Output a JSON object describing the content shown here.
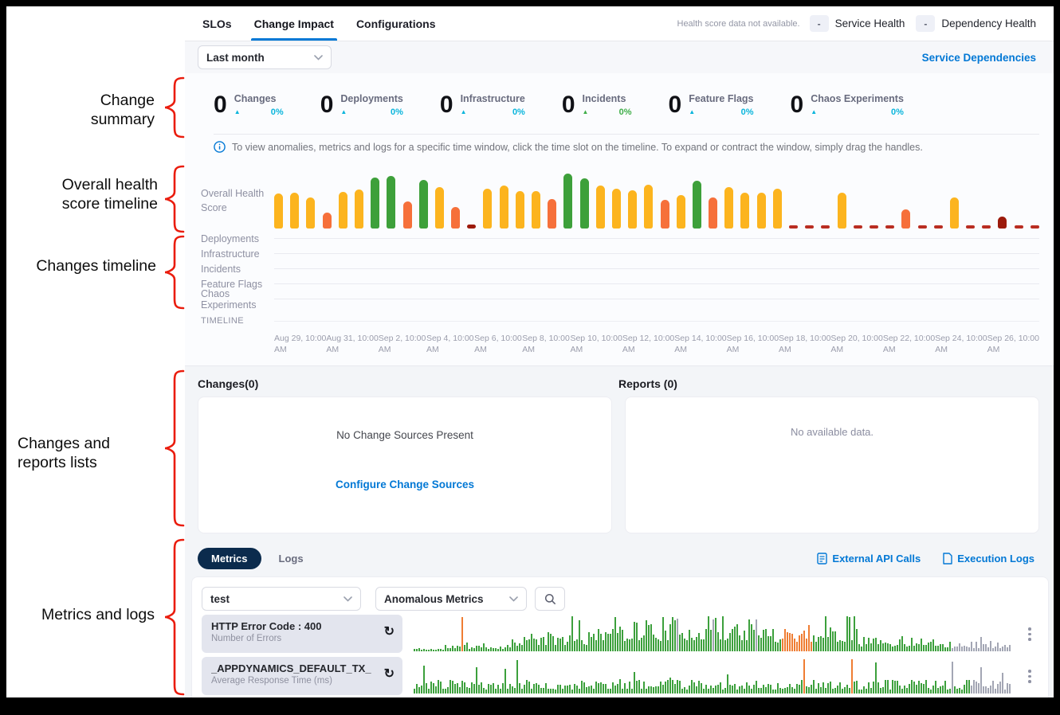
{
  "annotations": {
    "color": "#ea1c0d",
    "items": [
      {
        "label": "Change summary"
      },
      {
        "label": "Overall health score timeline"
      },
      {
        "label": "Changes timeline"
      },
      {
        "label": "Changes and reports lists"
      },
      {
        "label": "Metrics and logs"
      }
    ]
  },
  "tabs": {
    "items": [
      "SLOs",
      "Change Impact",
      "Configurations"
    ],
    "active": "Change Impact"
  },
  "health_legend": {
    "note": "Health score data not available.",
    "items": [
      {
        "value": "-",
        "label": "Service Health"
      },
      {
        "value": "-",
        "label": "Dependency Health"
      }
    ]
  },
  "time_range": {
    "value": "Last month"
  },
  "service_dependencies_link": "Service Dependencies",
  "summary": {
    "stats": [
      {
        "value": "0",
        "label": "Changes",
        "delta": "0%",
        "delta_color": "#0ab5dc"
      },
      {
        "value": "0",
        "label": "Deployments",
        "delta": "0%",
        "delta_color": "#0ab5dc"
      },
      {
        "value": "0",
        "label": "Infrastructure",
        "delta": "0%",
        "delta_color": "#0ab5dc"
      },
      {
        "value": "0",
        "label": "Incidents",
        "delta": "0%",
        "delta_color": "#3fae49"
      },
      {
        "value": "0",
        "label": "Feature Flags",
        "delta": "0%",
        "delta_color": "#0ab5dc"
      },
      {
        "value": "0",
        "label": "Chaos Experiments",
        "delta": "0%",
        "delta_color": "#0ab5dc"
      }
    ]
  },
  "info_banner": "To view anomalies, metrics and logs for a specific time window, click the time slot on the timeline. To expand or contract the window, simply drag the handles.",
  "timeline": {
    "overall_label": "Overall Health Score",
    "rows": [
      "Deployments",
      "Infrastructure",
      "Incidents",
      "Feature Flags",
      "Chaos Experiments"
    ],
    "timeline_label": "TIMELINE",
    "dates": [
      "Aug 29, 10:00 AM",
      "Aug 31, 10:00 AM",
      "Sep 2, 10:00 AM",
      "Sep 4, 10:00 AM",
      "Sep 6, 10:00 AM",
      "Sep 8, 10:00 AM",
      "Sep 10, 10:00 AM",
      "Sep 12, 10:00 AM",
      "Sep 14, 10:00 AM",
      "Sep 16, 10:00 AM",
      "Sep 18, 10:00 AM",
      "Sep 20, 10:00 AM",
      "Sep 22, 10:00 AM",
      "Sep 24, 10:00 AM",
      "Sep 26, 10:00 AM"
    ],
    "bar_colors": {
      "y": "#fcb41e",
      "g": "#3da03a",
      "o": "#f6703a",
      "r": "#b92d21",
      "R": "#9c1a0b"
    },
    "bars": [
      [
        "y",
        52
      ],
      [
        "y",
        53
      ],
      [
        "y",
        46
      ],
      [
        "o",
        24
      ],
      [
        "y",
        55
      ],
      [
        "y",
        58
      ],
      [
        "g",
        76
      ],
      [
        "g",
        78
      ],
      [
        "o",
        40
      ],
      [
        "g",
        73
      ],
      [
        "y",
        62
      ],
      [
        "o",
        32
      ],
      [
        "R",
        6
      ],
      [
        "y",
        60
      ],
      [
        "y",
        64
      ],
      [
        "y",
        56
      ],
      [
        "y",
        56
      ],
      [
        "o",
        44
      ],
      [
        "g",
        82
      ],
      [
        "g",
        75
      ],
      [
        "y",
        64
      ],
      [
        "y",
        60
      ],
      [
        "y",
        57
      ],
      [
        "y",
        65
      ],
      [
        "o",
        43
      ],
      [
        "y",
        50
      ],
      [
        "g",
        72
      ],
      [
        "o",
        46
      ],
      [
        "y",
        62
      ],
      [
        "y",
        54
      ],
      [
        "y",
        53
      ],
      [
        "y",
        60
      ],
      [
        "r",
        5
      ],
      [
        "r",
        5
      ],
      [
        "r",
        5
      ],
      [
        "y",
        54
      ],
      [
        "r",
        5
      ],
      [
        "r",
        5
      ],
      [
        "r",
        5
      ],
      [
        "o",
        29
      ],
      [
        "r",
        5
      ],
      [
        "r",
        5
      ],
      [
        "y",
        46
      ],
      [
        "r",
        5
      ],
      [
        "r",
        5
      ],
      [
        "R",
        18
      ],
      [
        "r",
        5
      ],
      [
        "r",
        5
      ]
    ]
  },
  "changes_panel": {
    "title": "Changes(0)",
    "empty_text": "No Change Sources Present",
    "link": "Configure Change Sources"
  },
  "reports_panel": {
    "title": "Reports (0)",
    "empty_text": "No available data."
  },
  "metrics_section": {
    "tabs": [
      {
        "label": "Metrics",
        "active": true
      },
      {
        "label": "Logs",
        "active": false
      }
    ],
    "links": [
      {
        "label": "External API Calls",
        "icon": "external-api-calls-icon"
      },
      {
        "label": "Execution Logs",
        "icon": "execution-logs-icon"
      }
    ],
    "filters": {
      "service": "test",
      "metric_type": "Anomalous Metrics"
    },
    "spark_colors": {
      "green": "#3ca03c",
      "orange": "#ef7d33",
      "gray": "#a3a6b4"
    },
    "rows": [
      {
        "title": "HTTP Error Code : 400",
        "subtitle": "Number of Errors",
        "spark": {
          "seed": 11,
          "bars": 250,
          "max": 44,
          "envelope": [
            [
              0,
              0.05,
              0.1
            ],
            [
              0.05,
              0.16,
              0.22
            ],
            [
              0.16,
              0.3,
              0.55
            ],
            [
              0.3,
              0.56,
              1.0
            ],
            [
              0.56,
              0.74,
              0.85
            ],
            [
              0.74,
              0.88,
              0.45
            ],
            [
              0.88,
              1,
              0.3
            ]
          ],
          "orange_regions": [
            [
              0.615,
              0.665
            ]
          ],
          "orange_spikes": [
            0.08
          ],
          "gray_regions": [
            [
              0.9,
              1.0
            ]
          ],
          "gray_spikes": [
            0.44,
            0.5,
            0.57
          ],
          "spike_chance": 0.04
        }
      },
      {
        "title": "_APPDYNAMICS_DEFAULT_TX_",
        "subtitle": "Average Response Time (ms)",
        "spark": {
          "seed": 23,
          "bars": 250,
          "max": 44,
          "envelope": [
            [
              0,
              1,
              0.4
            ]
          ],
          "orange_regions": [],
          "orange_spikes": [
            0.65,
            0.73
          ],
          "gray_regions": [
            [
              0.93,
              1.0
            ]
          ],
          "gray_spikes": [
            0.9
          ],
          "spike_chance": 0.05
        }
      }
    ]
  },
  "colors": {
    "accent_blue": "#0278d5",
    "pill_navy": "#0b2b4d"
  }
}
